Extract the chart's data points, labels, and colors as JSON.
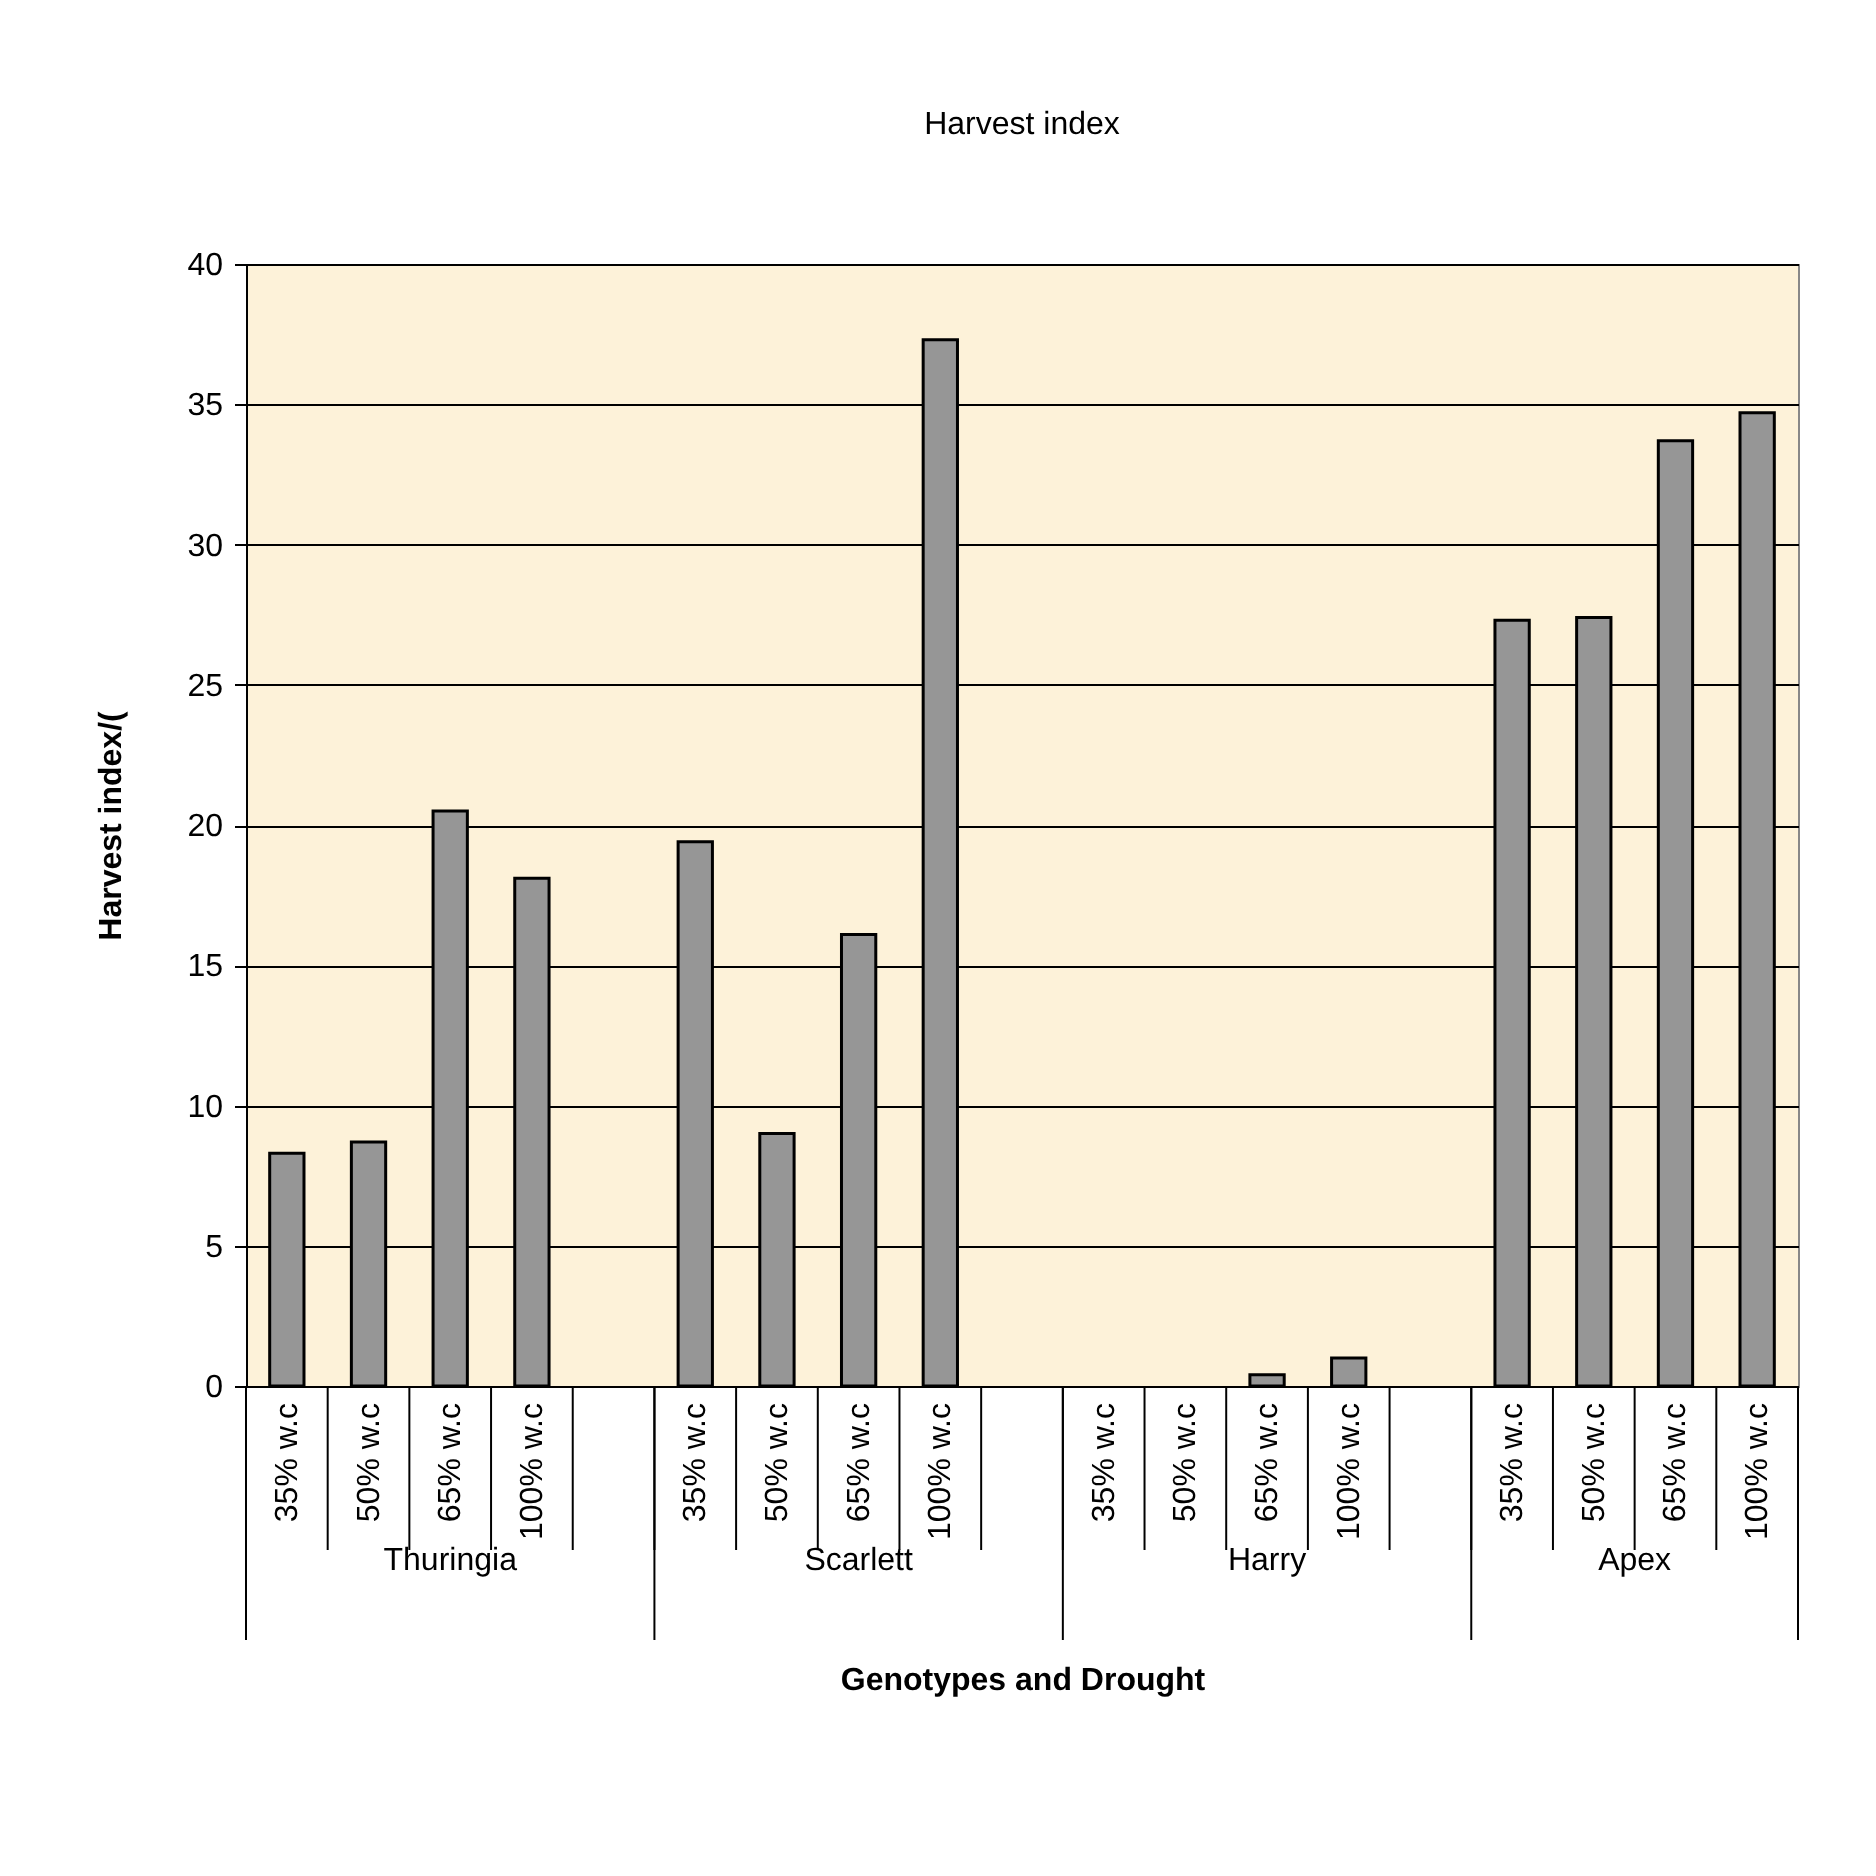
{
  "chart_data": {
    "type": "bar",
    "title": "Harvest index",
    "xlabel": "Genotypes and Drought",
    "ylabel": "Harvest index/(",
    "categories": [
      "35% w.c",
      "50% w.c",
      "65% w.c",
      "100% w.c",
      null,
      "35% w.c",
      "50% w.c",
      "65% w.c",
      "100% w.c",
      null,
      "35% w.c",
      "50% w.c",
      "65% w.c",
      "100% w.c",
      null,
      "35% w.c",
      "50% w.c",
      "65% w.c",
      "100% w.c"
    ],
    "values": [
      8.3,
      8.7,
      20.5,
      18.1,
      null,
      19.4,
      9.0,
      16.1,
      37.3,
      null,
      null,
      null,
      0.4,
      1.0,
      null,
      27.3,
      27.4,
      33.7,
      34.7
    ],
    "color": "#969696",
    "annotations": [
      "Thuringia",
      "Scarlett",
      "Harry",
      "Apex"
    ],
    "ylim": [
      0,
      40
    ],
    "yticks": [
      0,
      5,
      10,
      15,
      20,
      25,
      30,
      35,
      40
    ],
    "grid": "y"
  }
}
